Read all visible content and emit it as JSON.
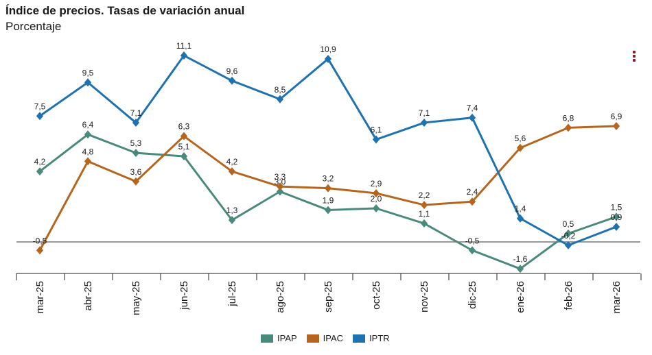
{
  "chart_data": {
    "type": "line",
    "title": "Índice de precios. Tasas de variación anual",
    "subtitle": "Porcentaje",
    "categories": [
      "mar-25",
      "abr-25",
      "may-25",
      "jun-25",
      "jul-25",
      "ago-25",
      "sep-25",
      "oct-25",
      "nov-25",
      "dic-25",
      "ene-26",
      "feb-26",
      "mar-26"
    ],
    "series": [
      {
        "name": "IPAP",
        "color": "#4a8a7c",
        "values": [
          4.2,
          6.4,
          5.3,
          5.1,
          1.3,
          3.0,
          1.9,
          2.0,
          1.1,
          -0.5,
          -1.6,
          0.5,
          1.5
        ]
      },
      {
        "name": "IPAC",
        "color": "#b5651d",
        "values": [
          -0.5,
          4.8,
          3.6,
          6.3,
          4.2,
          3.3,
          3.2,
          2.9,
          2.2,
          2.4,
          5.6,
          6.8,
          6.9
        ]
      },
      {
        "name": "IPTR",
        "color": "#1f72b0",
        "values": [
          7.5,
          9.5,
          7.1,
          11.1,
          9.6,
          8.5,
          10.9,
          6.1,
          7.1,
          7.4,
          1.4,
          -0.2,
          0.9
        ]
      }
    ],
    "value_labels": {
      "IPAP": [
        "4,2",
        "6,4",
        "5,3",
        "5,1",
        "1,3",
        "3,0",
        "1,9",
        "2,0",
        "1,1",
        "-0,5",
        "-1,6",
        "0,5",
        "1,5"
      ],
      "IPAC": [
        "-0,5",
        "4,8",
        "3,6",
        "6,3",
        "4,2",
        "3,3",
        "3,2",
        "2,9",
        "2,2",
        "2,4",
        "5,6",
        "6,8",
        "6,9"
      ],
      "IPTR": [
        "7,5",
        "9,5",
        "7,1",
        "11,1",
        "9,6",
        "8,5",
        "10,9",
        "6,1",
        "7,1",
        "7,4",
        "1,4",
        "-0,2",
        "0,9"
      ]
    },
    "zero_line": true,
    "grid": false,
    "legend_position": "bottom"
  }
}
